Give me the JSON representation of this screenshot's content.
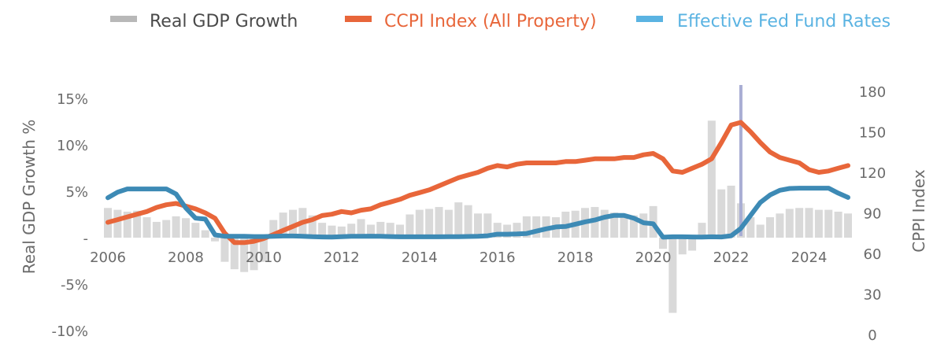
{
  "chart_data": {
    "type": "bar+line",
    "legend": [
      {
        "label": "Real GDP Growth",
        "color": "#b8b8b8"
      },
      {
        "label": "CCPI Index (All Property)",
        "color": "#e8663a"
      },
      {
        "label": "Effective Fed Fund Rates",
        "color": "#5ab3e2"
      }
    ],
    "left_axis": {
      "title": "Real GDP Growth %",
      "range": [
        -10,
        15
      ],
      "ticks": [
        {
          "v": 15,
          "label": "15%"
        },
        {
          "v": 10,
          "label": "10%"
        },
        {
          "v": 5,
          "label": "5%"
        },
        {
          "v": 0,
          "label": "-"
        },
        {
          "v": -5,
          "label": "-5%"
        },
        {
          "v": -10,
          "label": "-10%"
        }
      ]
    },
    "right_axis": {
      "title": "CPPI Index",
      "range": [
        0,
        180
      ],
      "ticks": [
        {
          "v": 180,
          "label": "180"
        },
        {
          "v": 150,
          "label": "150"
        },
        {
          "v": 120,
          "label": "120"
        },
        {
          "v": 90,
          "label": "90"
        },
        {
          "v": 60,
          "label": "60"
        },
        {
          "v": 30,
          "label": "30"
        },
        {
          "v": 0,
          "label": "0"
        }
      ]
    },
    "x_axis": {
      "range": [
        2006,
        2025
      ],
      "ticks": [
        {
          "v": 2006,
          "label": "2006"
        },
        {
          "v": 2008,
          "label": "2008"
        },
        {
          "v": 2010,
          "label": "2010"
        },
        {
          "v": 2012,
          "label": "2012"
        },
        {
          "v": 2014,
          "label": "2014"
        },
        {
          "v": 2016,
          "label": "2016"
        },
        {
          "v": 2018,
          "label": "2018"
        },
        {
          "v": 2020,
          "label": "2020"
        },
        {
          "v": 2022,
          "label": "2022"
        },
        {
          "v": 2024,
          "label": "2024"
        }
      ]
    },
    "vline_x": 2022.25,
    "gdp_growth": [
      [
        2006.0,
        3.2
      ],
      [
        2006.25,
        3.0
      ],
      [
        2006.5,
        2.8
      ],
      [
        2006.75,
        2.9
      ],
      [
        2007.0,
        2.2
      ],
      [
        2007.25,
        1.7
      ],
      [
        2007.5,
        1.9
      ],
      [
        2007.75,
        2.3
      ],
      [
        2008.0,
        2.1
      ],
      [
        2008.25,
        1.6
      ],
      [
        2008.5,
        0.8
      ],
      [
        2008.75,
        -0.4
      ],
      [
        2009.0,
        -2.6
      ],
      [
        2009.25,
        -3.4
      ],
      [
        2009.5,
        -3.7
      ],
      [
        2009.75,
        -3.5
      ],
      [
        2010.0,
        -2.6
      ],
      [
        2010.25,
        1.9
      ],
      [
        2010.5,
        2.7
      ],
      [
        2010.75,
        3.0
      ],
      [
        2011.0,
        3.2
      ],
      [
        2011.25,
        2.4
      ],
      [
        2011.5,
        1.6
      ],
      [
        2011.75,
        1.3
      ],
      [
        2012.0,
        1.2
      ],
      [
        2012.25,
        1.5
      ],
      [
        2012.5,
        2.0
      ],
      [
        2012.75,
        1.4
      ],
      [
        2013.0,
        1.7
      ],
      [
        2013.25,
        1.6
      ],
      [
        2013.5,
        1.4
      ],
      [
        2013.75,
        2.5
      ],
      [
        2014.0,
        3.0
      ],
      [
        2014.25,
        3.1
      ],
      [
        2014.5,
        3.3
      ],
      [
        2014.75,
        3.0
      ],
      [
        2015.0,
        3.8
      ],
      [
        2015.25,
        3.5
      ],
      [
        2015.5,
        2.6
      ],
      [
        2015.75,
        2.6
      ],
      [
        2016.0,
        1.6
      ],
      [
        2016.25,
        1.4
      ],
      [
        2016.5,
        1.6
      ],
      [
        2016.75,
        2.3
      ],
      [
        2017.0,
        2.3
      ],
      [
        2017.25,
        2.3
      ],
      [
        2017.5,
        2.2
      ],
      [
        2017.75,
        2.8
      ],
      [
        2018.0,
        2.9
      ],
      [
        2018.25,
        3.2
      ],
      [
        2018.5,
        3.3
      ],
      [
        2018.75,
        3.0
      ],
      [
        2019.0,
        2.7
      ],
      [
        2019.25,
        2.5
      ],
      [
        2019.5,
        2.4
      ],
      [
        2019.75,
        2.6
      ],
      [
        2020.0,
        3.4
      ],
      [
        2020.25,
        -1.2
      ],
      [
        2020.5,
        -8.1
      ],
      [
        2020.75,
        -1.8
      ],
      [
        2021.0,
        -1.4
      ],
      [
        2021.25,
        1.6
      ],
      [
        2021.5,
        12.6
      ],
      [
        2021.75,
        5.2
      ],
      [
        2022.0,
        5.6
      ],
      [
        2022.25,
        3.7
      ],
      [
        2022.5,
        2.2
      ],
      [
        2022.75,
        1.4
      ],
      [
        2023.0,
        2.2
      ],
      [
        2023.25,
        2.6
      ],
      [
        2023.5,
        3.1
      ],
      [
        2023.75,
        3.2
      ],
      [
        2024.0,
        3.2
      ],
      [
        2024.25,
        3.0
      ],
      [
        2024.5,
        3.0
      ],
      [
        2024.75,
        2.8
      ],
      [
        2025.0,
        2.6
      ]
    ],
    "ccpi_index": [
      [
        2006.0,
        83
      ],
      [
        2006.25,
        85
      ],
      [
        2006.5,
        87
      ],
      [
        2006.75,
        89
      ],
      [
        2007.0,
        91
      ],
      [
        2007.25,
        94
      ],
      [
        2007.5,
        96
      ],
      [
        2007.75,
        97
      ],
      [
        2008.0,
        95
      ],
      [
        2008.25,
        93
      ],
      [
        2008.5,
        90
      ],
      [
        2008.75,
        86
      ],
      [
        2009.0,
        75
      ],
      [
        2009.25,
        68
      ],
      [
        2009.5,
        68
      ],
      [
        2009.75,
        69
      ],
      [
        2010.0,
        71
      ],
      [
        2010.25,
        74
      ],
      [
        2010.5,
        77
      ],
      [
        2010.75,
        80
      ],
      [
        2011.0,
        83
      ],
      [
        2011.25,
        85
      ],
      [
        2011.5,
        88
      ],
      [
        2011.75,
        89
      ],
      [
        2012.0,
        91
      ],
      [
        2012.25,
        90
      ],
      [
        2012.5,
        92
      ],
      [
        2012.75,
        93
      ],
      [
        2013.0,
        96
      ],
      [
        2013.25,
        98
      ],
      [
        2013.5,
        100
      ],
      [
        2013.75,
        103
      ],
      [
        2014.0,
        105
      ],
      [
        2014.25,
        107
      ],
      [
        2014.5,
        110
      ],
      [
        2014.75,
        113
      ],
      [
        2015.0,
        116
      ],
      [
        2015.25,
        118
      ],
      [
        2015.5,
        120
      ],
      [
        2015.75,
        123
      ],
      [
        2016.0,
        125
      ],
      [
        2016.25,
        124
      ],
      [
        2016.5,
        126
      ],
      [
        2016.75,
        127
      ],
      [
        2017.0,
        127
      ],
      [
        2017.25,
        127
      ],
      [
        2017.5,
        127
      ],
      [
        2017.75,
        128
      ],
      [
        2018.0,
        128
      ],
      [
        2018.25,
        129
      ],
      [
        2018.5,
        130
      ],
      [
        2018.75,
        130
      ],
      [
        2019.0,
        130
      ],
      [
        2019.25,
        131
      ],
      [
        2019.5,
        131
      ],
      [
        2019.75,
        133
      ],
      [
        2020.0,
        134
      ],
      [
        2020.25,
        130
      ],
      [
        2020.5,
        121
      ],
      [
        2020.75,
        120
      ],
      [
        2021.0,
        123
      ],
      [
        2021.25,
        126
      ],
      [
        2021.5,
        130
      ],
      [
        2021.75,
        142
      ],
      [
        2022.0,
        155
      ],
      [
        2022.25,
        157
      ],
      [
        2022.5,
        150
      ],
      [
        2022.75,
        142
      ],
      [
        2023.0,
        135
      ],
      [
        2023.25,
        131
      ],
      [
        2023.5,
        129
      ],
      [
        2023.75,
        127
      ],
      [
        2024.0,
        122
      ],
      [
        2024.25,
        120
      ],
      [
        2024.5,
        121
      ],
      [
        2024.75,
        123
      ],
      [
        2025.0,
        125
      ]
    ],
    "fed_funds_rate": [
      [
        2006.0,
        4.3
      ],
      [
        2006.25,
        4.9
      ],
      [
        2006.5,
        5.25
      ],
      [
        2006.75,
        5.25
      ],
      [
        2007.0,
        5.25
      ],
      [
        2007.25,
        5.25
      ],
      [
        2007.5,
        5.25
      ],
      [
        2007.75,
        4.7
      ],
      [
        2008.0,
        3.2
      ],
      [
        2008.25,
        2.1
      ],
      [
        2008.5,
        2.0
      ],
      [
        2008.75,
        0.3
      ],
      [
        2009.0,
        0.15
      ],
      [
        2009.25,
        0.15
      ],
      [
        2009.5,
        0.15
      ],
      [
        2009.75,
        0.12
      ],
      [
        2010.0,
        0.12
      ],
      [
        2010.25,
        0.15
      ],
      [
        2010.5,
        0.18
      ],
      [
        2010.75,
        0.18
      ],
      [
        2011.0,
        0.15
      ],
      [
        2011.25,
        0.1
      ],
      [
        2011.5,
        0.08
      ],
      [
        2011.75,
        0.07
      ],
      [
        2012.0,
        0.1
      ],
      [
        2012.25,
        0.15
      ],
      [
        2012.5,
        0.15
      ],
      [
        2012.75,
        0.16
      ],
      [
        2013.0,
        0.14
      ],
      [
        2013.25,
        0.12
      ],
      [
        2013.5,
        0.09
      ],
      [
        2013.75,
        0.09
      ],
      [
        2014.0,
        0.09
      ],
      [
        2014.25,
        0.09
      ],
      [
        2014.5,
        0.09
      ],
      [
        2014.75,
        0.1
      ],
      [
        2015.0,
        0.11
      ],
      [
        2015.25,
        0.13
      ],
      [
        2015.5,
        0.14
      ],
      [
        2015.75,
        0.2
      ],
      [
        2016.0,
        0.37
      ],
      [
        2016.25,
        0.37
      ],
      [
        2016.5,
        0.4
      ],
      [
        2016.75,
        0.45
      ],
      [
        2017.0,
        0.7
      ],
      [
        2017.25,
        0.95
      ],
      [
        2017.5,
        1.15
      ],
      [
        2017.75,
        1.2
      ],
      [
        2018.0,
        1.45
      ],
      [
        2018.25,
        1.7
      ],
      [
        2018.5,
        1.9
      ],
      [
        2018.75,
        2.2
      ],
      [
        2019.0,
        2.4
      ],
      [
        2019.25,
        2.4
      ],
      [
        2019.5,
        2.1
      ],
      [
        2019.75,
        1.6
      ],
      [
        2020.0,
        1.5
      ],
      [
        2020.25,
        0.05
      ],
      [
        2020.5,
        0.09
      ],
      [
        2020.75,
        0.09
      ],
      [
        2021.0,
        0.08
      ],
      [
        2021.25,
        0.06
      ],
      [
        2021.5,
        0.09
      ],
      [
        2021.75,
        0.08
      ],
      [
        2022.0,
        0.2
      ],
      [
        2022.25,
        1.0
      ],
      [
        2022.5,
        2.4
      ],
      [
        2022.75,
        3.8
      ],
      [
        2023.0,
        4.6
      ],
      [
        2023.25,
        5.1
      ],
      [
        2023.5,
        5.3
      ],
      [
        2023.75,
        5.33
      ],
      [
        2024.0,
        5.33
      ],
      [
        2024.25,
        5.33
      ],
      [
        2024.5,
        5.33
      ],
      [
        2024.75,
        4.8
      ],
      [
        2025.0,
        4.33
      ]
    ]
  }
}
